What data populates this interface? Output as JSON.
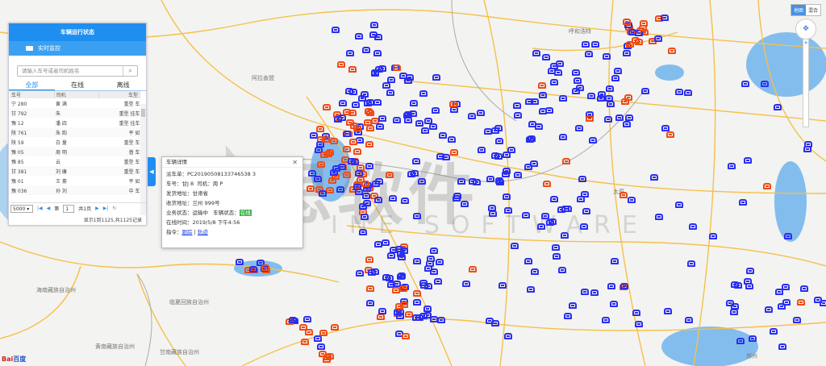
{
  "colors": {
    "online": "#2a2ef0",
    "offline": "#ef4b16",
    "accent": "#1f8ef1",
    "road": "#f5c04a",
    "water": "#5aa6ea"
  },
  "map": {
    "labels": [
      {
        "text": "呼和浩特"
      },
      {
        "text": "阿拉善盟"
      },
      {
        "text": "海南藏族自治州"
      },
      {
        "text": "临夏回族自治州"
      },
      {
        "text": "黄南藏族自治州"
      },
      {
        "text": "甘南藏族自治州"
      },
      {
        "text": "太原"
      },
      {
        "text": "郑州"
      }
    ],
    "map_type": {
      "options": [
        "地图",
        "混合"
      ],
      "selected": "地图"
    },
    "logo": "Bai百度",
    "watermark": "思软件",
    "watermark_sub": "INE SOFTWARE"
  },
  "panel": {
    "title": "车辆运行状态",
    "subtitle": "实时监控",
    "search_placeholder": "请输入车号或者司机姓名",
    "tabs": [
      "全部",
      "在线",
      "离线"
    ],
    "columns": [
      "车号",
      "司机",
      "车型"
    ],
    "rows": [
      {
        "plate": "宁 280",
        "driver": "黄 满",
        "type": "重型 车"
      },
      {
        "plate": "甘 792",
        "driver": "朱",
        "type": "重型 挂车"
      },
      {
        "plate": "豫 12",
        "driver": "潘 四",
        "type": "重型 挂车"
      },
      {
        "plate": "陕 761",
        "driver": "朱 韵",
        "type": "平 如"
      },
      {
        "plate": "陕 59",
        "driver": "白 量",
        "type": "重型 车"
      },
      {
        "plate": "豫 05",
        "driver": "周 明",
        "type": "普 车"
      },
      {
        "plate": "豫 85",
        "driver": "云",
        "type": "重型 车"
      },
      {
        "plate": "甘 381",
        "driver": "刘 康",
        "type": "重型 车"
      },
      {
        "plate": "豫 01",
        "driver": "王 豪",
        "type": "平 如"
      },
      {
        "plate": "豫 036",
        "driver": "孙 刘",
        "type": "中 车"
      }
    ],
    "pager": {
      "page_size": "5000",
      "page_prefix": "第",
      "page": "1",
      "page_suffix": "共1页",
      "summary": "显示1到1125,共1125记录"
    }
  },
  "popup": {
    "title": "车辆详情",
    "order_label": "派车单：",
    "order": "PC20190508133746538 3",
    "plate_label": "车号：",
    "plate": "甘J   8",
    "driver_label": "司机：",
    "driver": "周  P",
    "from_label": "发货地址：",
    "from": "甘肃省    ",
    "to_label": "收货地址：",
    "to": "兰州            999号",
    "biz_label": "业务状态：",
    "biz": "运输中",
    "veh_label": "车辆状态：",
    "veh": "在线",
    "time_label": "在线时间：",
    "time": "2019/5/8 下午4:56",
    "cmd_label": "指令：",
    "track": "跟踪",
    "trace": "轨迹"
  }
}
